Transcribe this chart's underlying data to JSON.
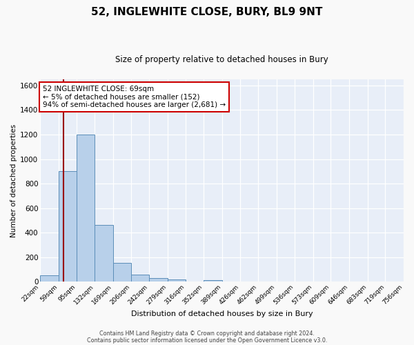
{
  "title": "52, INGLEWHITE CLOSE, BURY, BL9 9NT",
  "subtitle": "Size of property relative to detached houses in Bury",
  "xlabel": "Distribution of detached houses by size in Bury",
  "ylabel": "Number of detached properties",
  "bin_edges": [
    22,
    59,
    95,
    132,
    169,
    206,
    242,
    279,
    316,
    352,
    389,
    426,
    462,
    499,
    536,
    573,
    609,
    646,
    683,
    719,
    756
  ],
  "bin_counts": [
    50,
    900,
    1200,
    465,
    152,
    57,
    28,
    18,
    0,
    15,
    0,
    0,
    0,
    0,
    0,
    0,
    0,
    0,
    0,
    0
  ],
  "bar_color": "#b8d0ea",
  "bar_edge_color": "#5b8db8",
  "property_line_x": 69,
  "property_line_color": "#990000",
  "ylim": [
    0,
    1650
  ],
  "yticks": [
    0,
    200,
    400,
    600,
    800,
    1000,
    1200,
    1400,
    1600
  ],
  "annotation_text": "52 INGLEWHITE CLOSE: 69sqm\n← 5% of detached houses are smaller (152)\n94% of semi-detached houses are larger (2,681) →",
  "annotation_box_color": "#ffffff",
  "annotation_box_edge_color": "#cc0000",
  "footer_line1": "Contains HM Land Registry data © Crown copyright and database right 2024.",
  "footer_line2": "Contains public sector information licensed under the Open Government Licence v3.0.",
  "tick_labels": [
    "22sqm",
    "59sqm",
    "95sqm",
    "132sqm",
    "169sqm",
    "206sqm",
    "242sqm",
    "279sqm",
    "316sqm",
    "352sqm",
    "389sqm",
    "426sqm",
    "462sqm",
    "499sqm",
    "536sqm",
    "573sqm",
    "609sqm",
    "646sqm",
    "683sqm",
    "719sqm",
    "756sqm"
  ],
  "fig_bg_color": "#f9f9f9",
  "plot_bg_color": "#e8eef8"
}
